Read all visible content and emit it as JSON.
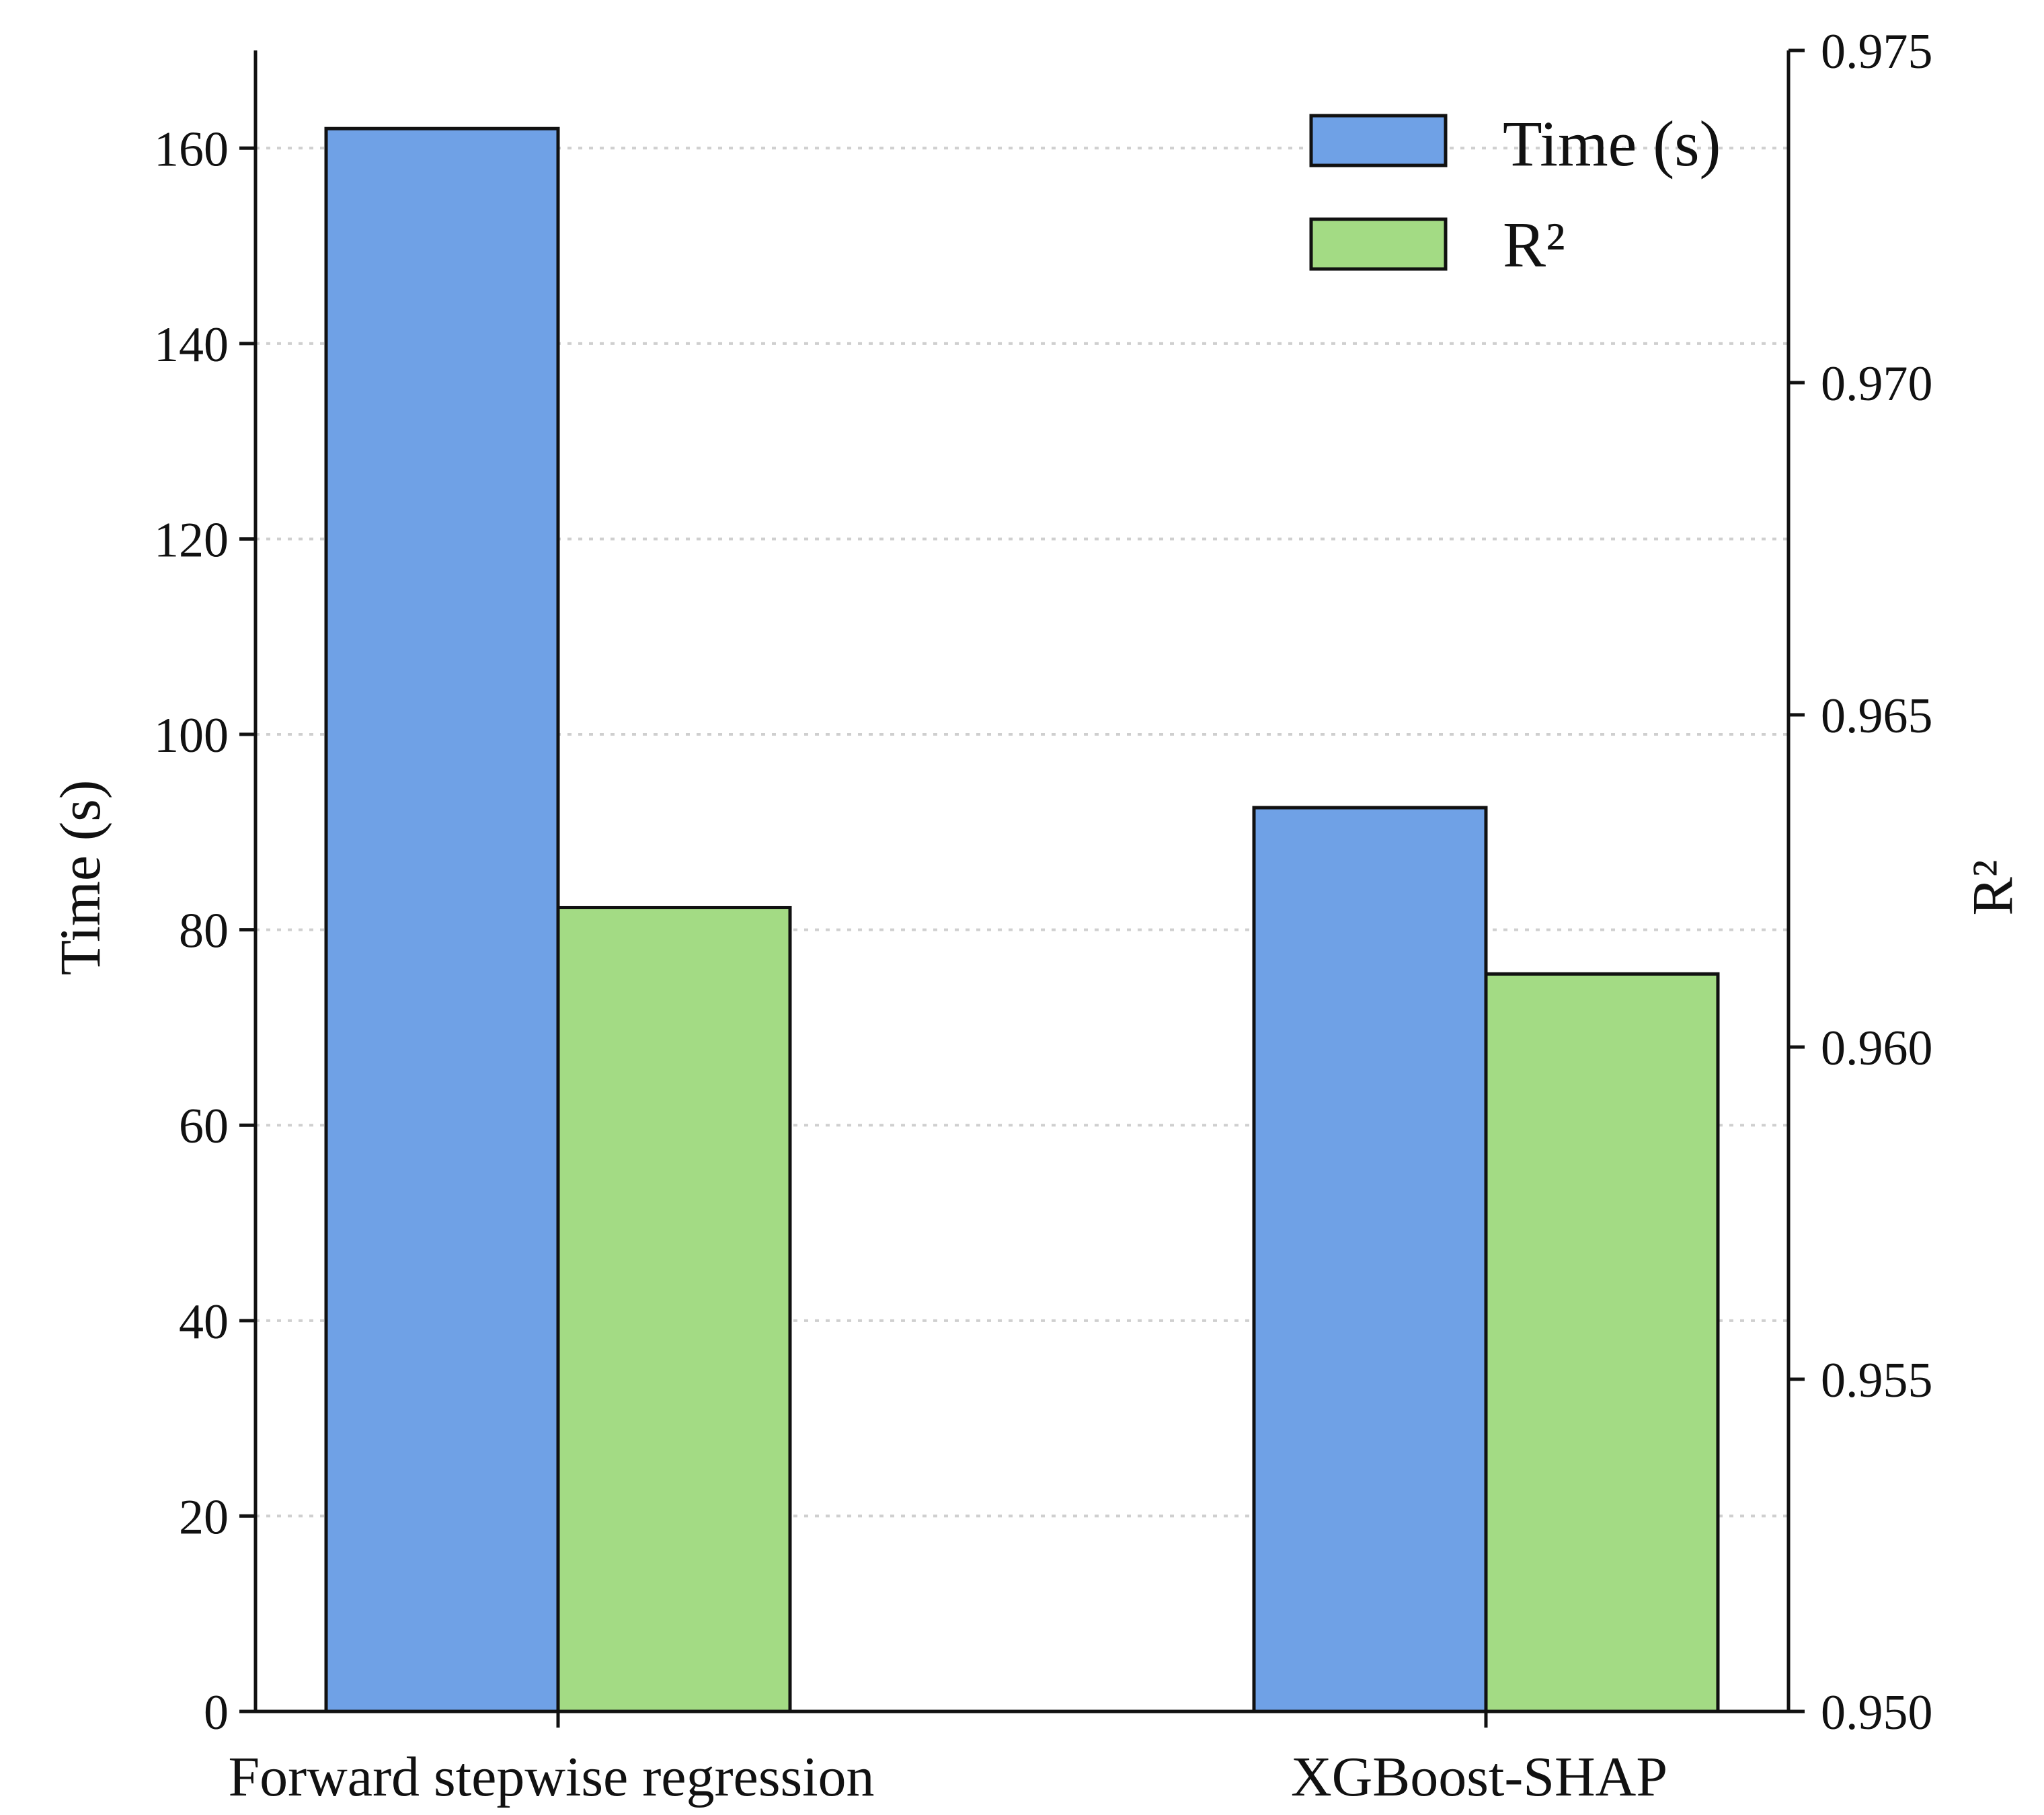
{
  "chart_data": {
    "type": "bar",
    "title": "",
    "categories": [
      "Forward stepwise regression",
      "XGBoost-SHAP"
    ],
    "series": [
      {
        "name": "Time (s)",
        "axis": "left",
        "values": [
          162,
          92.5
        ],
        "color": "#6fa1e6"
      },
      {
        "name": "R²",
        "axis": "right",
        "values": [
          0.9621,
          0.9611
        ],
        "color": "#a3db84"
      }
    ],
    "xlabel": "",
    "ylabel": "Time (s)",
    "ylabel_right": "R²",
    "ylim": [
      0,
      170
    ],
    "ylim_right": [
      0.95,
      0.975
    ],
    "yticks": [
      0,
      20,
      40,
      60,
      80,
      100,
      120,
      140,
      160
    ],
    "ytick_labels": [
      "0",
      "20",
      "40",
      "60",
      "80",
      "100",
      "120",
      "140",
      "160"
    ],
    "yticks_right": [
      0.95,
      0.955,
      0.96,
      0.965,
      0.97,
      0.975
    ],
    "ytick_labels_right": [
      "0.950",
      "0.955",
      "0.960",
      "0.965",
      "0.970",
      "0.975"
    ],
    "grid": true,
    "legend_position": "top-right"
  }
}
